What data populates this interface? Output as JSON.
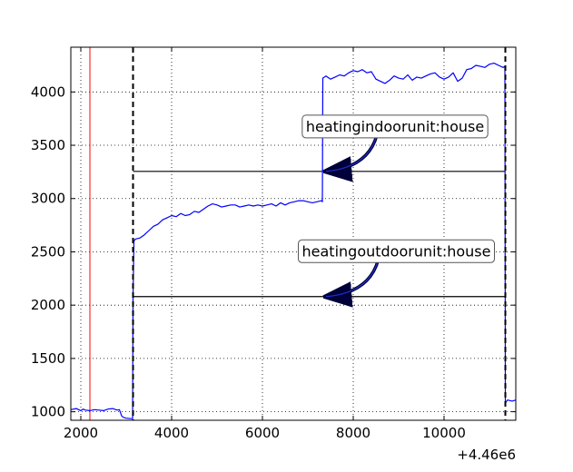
{
  "chart_data": {
    "type": "line",
    "title": "",
    "xlabel": "",
    "ylabel": "",
    "x_offset_label": "+4.46e6",
    "xlim": [
      1780,
      11580
    ],
    "ylim": [
      920,
      4420
    ],
    "grid": true,
    "x_ticks": [
      2000,
      4000,
      6000,
      8000,
      10000
    ],
    "y_ticks": [
      1000,
      1500,
      2000,
      2500,
      3000,
      3500,
      4000
    ],
    "colors": {
      "signal": "#0000ff",
      "marker_line": "#ff0000",
      "boundary": "#000000",
      "grid": "#000000"
    },
    "red_marker_x": 2200,
    "boundaries_x": [
      3150,
      11350
    ],
    "series": [
      {
        "color": "#0000ff",
        "x": [
          1780,
          1900,
          2000,
          2050,
          2100,
          2200,
          2300,
          2400,
          2500,
          2600,
          2700,
          2800,
          2850,
          2900,
          2950,
          3000,
          3100,
          3140,
          3150,
          3170,
          3200,
          3300,
          3400,
          3500,
          3600,
          3700,
          3800,
          3900,
          4000,
          4100,
          4200,
          4300,
          4400,
          4500,
          4600,
          4700,
          4800,
          4900,
          5000,
          5100,
          5200,
          5300,
          5400,
          5500,
          5600,
          5700,
          5800,
          5900,
          6000,
          6100,
          6200,
          6300,
          6400,
          6500,
          6600,
          6700,
          6800,
          6900,
          7000,
          7100,
          7200,
          7300,
          7320,
          7330,
          7400,
          7500,
          7600,
          7700,
          7800,
          7900,
          8000,
          8100,
          8200,
          8300,
          8400,
          8500,
          8600,
          8700,
          8800,
          8900,
          9000,
          9100,
          9200,
          9300,
          9400,
          9500,
          9600,
          9700,
          9800,
          9900,
          10000,
          10100,
          10200,
          10300,
          10400,
          10500,
          10600,
          10700,
          10800,
          10900,
          11000,
          11100,
          11200,
          11300,
          11340,
          11350,
          11370,
          11400,
          11500,
          11580
        ],
        "y": [
          1020,
          1030,
          1010,
          1025,
          1015,
          1010,
          1020,
          1015,
          1010,
          1025,
          1030,
          1015,
          1020,
          960,
          945,
          940,
          935,
          935,
          2080,
          2600,
          2620,
          2630,
          2660,
          2700,
          2740,
          2760,
          2800,
          2820,
          2840,
          2830,
          2860,
          2840,
          2850,
          2880,
          2870,
          2900,
          2930,
          2950,
          2940,
          2920,
          2930,
          2940,
          2940,
          2920,
          2930,
          2940,
          2930,
          2940,
          2930,
          2940,
          2950,
          2930,
          2960,
          2940,
          2960,
          2970,
          2980,
          2980,
          2970,
          2960,
          2970,
          2980,
          2970,
          4130,
          4150,
          4120,
          4140,
          4160,
          4150,
          4180,
          4200,
          4190,
          4210,
          4180,
          4190,
          4120,
          4100,
          4080,
          4110,
          4150,
          4130,
          4120,
          4160,
          4110,
          4140,
          4130,
          4150,
          4170,
          4180,
          4140,
          4120,
          4140,
          4180,
          4100,
          4130,
          4210,
          4220,
          4250,
          4240,
          4230,
          4260,
          4270,
          4250,
          4230,
          4240,
          1080,
          1095,
          1110,
          1100,
          1110
        ]
      }
    ],
    "annotations": [
      {
        "text": "heatingindoorunit:house",
        "text_x": 8920,
        "text_y": 3680,
        "arrow_to_x": 7320,
        "arrow_to_y": 3255,
        "hline_y": 3255,
        "hline_from": 3150,
        "hline_to": 11350
      },
      {
        "text": "heatingoutdoorunit:house",
        "text_x": 8950,
        "text_y": 2510,
        "arrow_to_x": 7320,
        "arrow_to_y": 2080,
        "hline_y": 2080,
        "hline_from": 3150,
        "hline_to": 11350
      }
    ]
  }
}
